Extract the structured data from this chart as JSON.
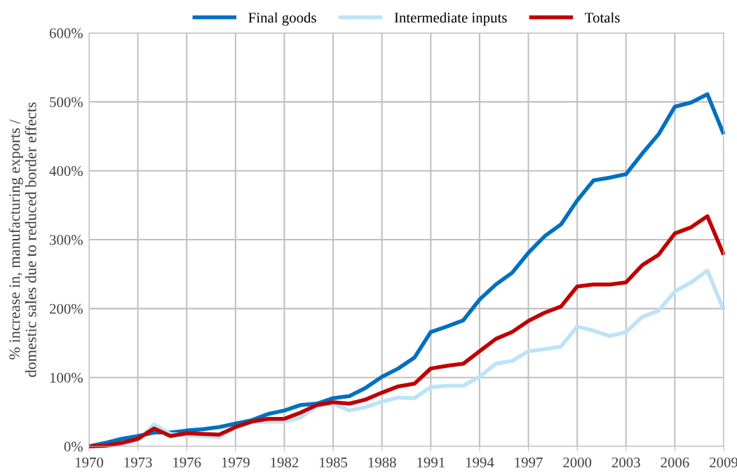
{
  "chart_data": {
    "type": "line",
    "ylabel": "% increase in, manufacturing exports /\ndomestic sales due to reduced border effects",
    "x": [
      1970,
      1971,
      1972,
      1973,
      1974,
      1975,
      1976,
      1977,
      1978,
      1979,
      1980,
      1981,
      1982,
      1983,
      1984,
      1985,
      1986,
      1987,
      1988,
      1989,
      1990,
      1991,
      1992,
      1993,
      1994,
      1995,
      1996,
      1997,
      1998,
      1999,
      2000,
      2001,
      2002,
      2003,
      2004,
      2005,
      2006,
      2007,
      2008,
      2009
    ],
    "series": [
      {
        "name": "Final goods",
        "color": "#0070c0",
        "values": [
          0,
          5,
          11,
          15,
          20,
          20,
          23,
          25,
          28,
          33,
          38,
          47,
          52,
          60,
          62,
          70,
          73,
          85,
          101,
          113,
          129,
          166,
          174,
          183,
          213,
          235,
          252,
          281,
          305,
          322,
          357,
          386,
          390,
          395,
          425,
          453,
          493,
          499,
          511,
          453
        ]
      },
      {
        "name": "Intermediate inputs",
        "color": "#bde3f7",
        "values": [
          0,
          0,
          3,
          8,
          32,
          18,
          16,
          15,
          13,
          27,
          35,
          36,
          36,
          42,
          58,
          62,
          52,
          57,
          65,
          71,
          70,
          86,
          88,
          88,
          101,
          120,
          124,
          138,
          141,
          145,
          174,
          168,
          160,
          166,
          188,
          197,
          225,
          238,
          255,
          198
        ]
      },
      {
        "name": "Totals",
        "color": "#c00000",
        "values": [
          0,
          1,
          5,
          11,
          26,
          15,
          19,
          18,
          17,
          28,
          36,
          40,
          40,
          49,
          60,
          64,
          62,
          68,
          78,
          87,
          91,
          113,
          117,
          120,
          138,
          156,
          166,
          182,
          194,
          203,
          232,
          235,
          235,
          238,
          263,
          278,
          309,
          318,
          334,
          278
        ]
      }
    ],
    "xlim": [
      1970,
      2009
    ],
    "xticks": [
      1970,
      1973,
      1976,
      1979,
      1982,
      1985,
      1988,
      1991,
      1994,
      1997,
      2000,
      2003,
      2006,
      2009
    ],
    "ylim": [
      0,
      600
    ],
    "yticks": [
      {
        "value": 0,
        "label": "0%"
      },
      {
        "value": 100,
        "label": "100%"
      },
      {
        "value": 200,
        "label": "200%"
      },
      {
        "value": 300,
        "label": "300%"
      },
      {
        "value": 400,
        "label": "400%"
      },
      {
        "value": 500,
        "label": "500%"
      },
      {
        "value": 600,
        "label": "600%"
      }
    ],
    "grid": true,
    "legend": "top",
    "marker": "none",
    "line_style": "solid"
  }
}
